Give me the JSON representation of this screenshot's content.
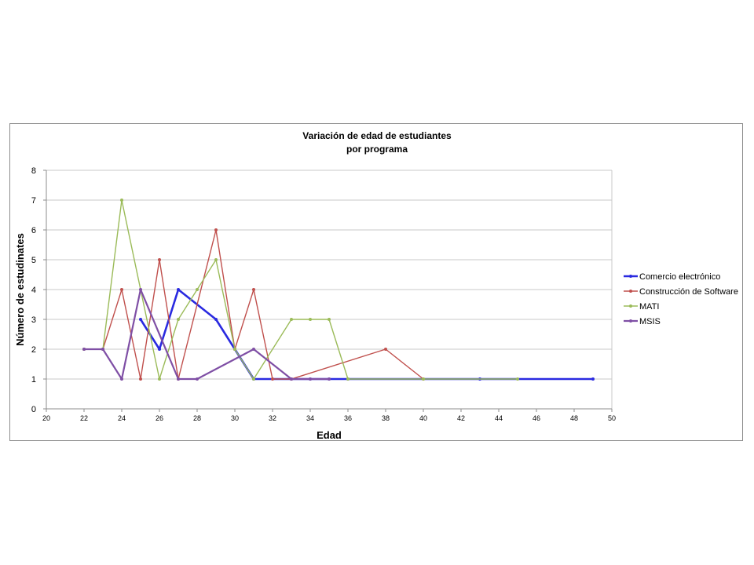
{
  "chart_data": {
    "type": "line",
    "title": [
      "Variación de edad de estudiantes",
      "por programa"
    ],
    "xlabel": "Edad",
    "ylabel": "Número de estudinates",
    "xlim": [
      20,
      50
    ],
    "ylim": [
      0,
      8
    ],
    "x_ticks": [
      20,
      22,
      24,
      26,
      28,
      30,
      32,
      34,
      36,
      38,
      40,
      42,
      44,
      46,
      48,
      50
    ],
    "y_ticks": [
      0,
      1,
      2,
      3,
      4,
      5,
      6,
      7,
      8
    ],
    "grid": true,
    "legend_position": "right",
    "series": [
      {
        "name": "Comercio electrónico",
        "color": "#2a2ae0",
        "line_width": "thick",
        "points": [
          [
            25,
            3
          ],
          [
            26,
            2
          ],
          [
            27,
            4
          ],
          [
            29,
            3
          ],
          [
            30,
            2
          ],
          [
            31,
            1
          ],
          [
            33,
            1
          ],
          [
            34,
            1
          ],
          [
            35,
            1
          ],
          [
            36,
            1
          ],
          [
            43,
            1
          ],
          [
            49,
            1
          ]
        ]
      },
      {
        "name": "Construcción de Software",
        "color": "#c0504d",
        "line_width": "thin",
        "points": [
          [
            22,
            2
          ],
          [
            23,
            2
          ],
          [
            24,
            4
          ],
          [
            25,
            1
          ],
          [
            26,
            5
          ],
          [
            27,
            1
          ],
          [
            29,
            6
          ],
          [
            30,
            2
          ],
          [
            31,
            4
          ],
          [
            32,
            1
          ],
          [
            33,
            1
          ],
          [
            38,
            2
          ],
          [
            40,
            1
          ]
        ]
      },
      {
        "name": "MATI",
        "color": "#9bbb59",
        "line_width": "thin",
        "points": [
          [
            22,
            2
          ],
          [
            23,
            2
          ],
          [
            24,
            7
          ],
          [
            26,
            1
          ],
          [
            27,
            3
          ],
          [
            28,
            4
          ],
          [
            29,
            5
          ],
          [
            30,
            2
          ],
          [
            31,
            1
          ],
          [
            33,
            3
          ],
          [
            34,
            3
          ],
          [
            35,
            3
          ],
          [
            36,
            1
          ],
          [
            40,
            1
          ],
          [
            45,
            1
          ]
        ]
      },
      {
        "name": "MSIS",
        "color": "#7f4fa5",
        "line_width": "medium",
        "points": [
          [
            22,
            2
          ],
          [
            23,
            2
          ],
          [
            24,
            1
          ],
          [
            25,
            4
          ],
          [
            27,
            1
          ],
          [
            28,
            1
          ],
          [
            31,
            2
          ],
          [
            33,
            1
          ],
          [
            34,
            1
          ],
          [
            35,
            1
          ]
        ]
      }
    ]
  }
}
